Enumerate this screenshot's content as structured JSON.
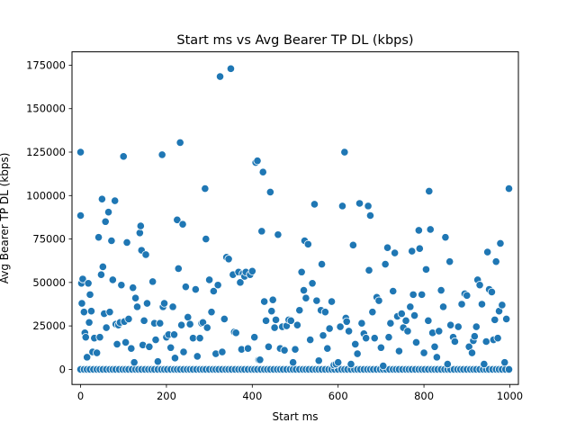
{
  "chart_data": {
    "type": "scatter",
    "title": "Start ms vs Avg Bearer TP DL (kbps)",
    "xlabel": "Start ms",
    "ylabel": "Avg Bearer TP DL (kbps)",
    "xlim": [
      -20,
      1020
    ],
    "ylim": [
      -8700,
      182700
    ],
    "x_ticks": [
      0,
      200,
      400,
      600,
      800,
      1000
    ],
    "x_tick_labels": [
      "0",
      "200",
      "400",
      "600",
      "800",
      "1000"
    ],
    "y_ticks": [
      0,
      25000,
      50000,
      75000,
      100000,
      125000,
      150000,
      175000
    ],
    "y_tick_labels": [
      "0",
      "25000",
      "50000",
      "75000",
      "100000",
      "125000",
      "150000",
      "175000"
    ],
    "grid": false,
    "legend": "none",
    "colors": {
      "marker": "#1f77b4",
      "marker_edge": "#ffffff"
    },
    "points": [
      [
        0,
        125000
      ],
      [
        0,
        88500
      ],
      [
        2,
        49500
      ],
      [
        3,
        38000
      ],
      [
        5,
        52000
      ],
      [
        8,
        33000
      ],
      [
        10,
        21000
      ],
      [
        12,
        18500
      ],
      [
        15,
        7000
      ],
      [
        18,
        49500
      ],
      [
        20,
        27000
      ],
      [
        22,
        43000
      ],
      [
        25,
        33500
      ],
      [
        28,
        10000
      ],
      [
        32,
        18000
      ],
      [
        38,
        9500
      ],
      [
        42,
        76000
      ],
      [
        45,
        18500
      ],
      [
        48,
        54500
      ],
      [
        50,
        98000
      ],
      [
        52,
        59000
      ],
      [
        55,
        32000
      ],
      [
        58,
        85000
      ],
      [
        60,
        24000
      ],
      [
        65,
        90500
      ],
      [
        68,
        33000
      ],
      [
        72,
        74000
      ],
      [
        75,
        51500
      ],
      [
        80,
        97000
      ],
      [
        82,
        26000
      ],
      [
        85,
        14500
      ],
      [
        88,
        25500
      ],
      [
        92,
        27000
      ],
      [
        95,
        48500
      ],
      [
        100,
        122500
      ],
      [
        102,
        27500
      ],
      [
        105,
        15500
      ],
      [
        108,
        73000
      ],
      [
        112,
        29000
      ],
      [
        118,
        12000
      ],
      [
        122,
        47000
      ],
      [
        125,
        4000
      ],
      [
        128,
        41000
      ],
      [
        132,
        36000
      ],
      [
        138,
        78500
      ],
      [
        140,
        82500
      ],
      [
        142,
        68500
      ],
      [
        145,
        14000
      ],
      [
        148,
        28000
      ],
      [
        152,
        66000
      ],
      [
        155,
        38000
      ],
      [
        160,
        13000
      ],
      [
        168,
        50500
      ],
      [
        172,
        26500
      ],
      [
        175,
        17000
      ],
      [
        180,
        4500
      ],
      [
        185,
        26500
      ],
      [
        190,
        123500
      ],
      [
        192,
        36000
      ],
      [
        195,
        38000
      ],
      [
        200,
        18500
      ],
      [
        205,
        20000
      ],
      [
        210,
        12500
      ],
      [
        215,
        36000
      ],
      [
        218,
        20000
      ],
      [
        220,
        6500
      ],
      [
        225,
        86000
      ],
      [
        228,
        58000
      ],
      [
        232,
        130500
      ],
      [
        235,
        25500
      ],
      [
        238,
        83500
      ],
      [
        240,
        10000
      ],
      [
        245,
        47500
      ],
      [
        250,
        30000
      ],
      [
        255,
        26000
      ],
      [
        262,
        18000
      ],
      [
        268,
        46000
      ],
      [
        272,
        7500
      ],
      [
        278,
        18000
      ],
      [
        282,
        26500
      ],
      [
        285,
        27000
      ],
      [
        290,
        104000
      ],
      [
        292,
        75000
      ],
      [
        295,
        24000
      ],
      [
        300,
        51500
      ],
      [
        305,
        33000
      ],
      [
        310,
        45000
      ],
      [
        315,
        9000
      ],
      [
        320,
        48500
      ],
      [
        325,
        168500
      ],
      [
        330,
        10000
      ],
      [
        335,
        29000
      ],
      [
        340,
        64500
      ],
      [
        345,
        63500
      ],
      [
        350,
        173000
      ],
      [
        355,
        54500
      ],
      [
        358,
        21500
      ],
      [
        362,
        21000
      ],
      [
        368,
        56000
      ],
      [
        372,
        50000
      ],
      [
        375,
        11500
      ],
      [
        378,
        55000
      ],
      [
        382,
        53500
      ],
      [
        385,
        56000
      ],
      [
        390,
        12000
      ],
      [
        395,
        54500
      ],
      [
        400,
        56500
      ],
      [
        405,
        18500
      ],
      [
        408,
        119000
      ],
      [
        412,
        120000
      ],
      [
        415,
        5500
      ],
      [
        418,
        5500
      ],
      [
        422,
        79500
      ],
      [
        425,
        113500
      ],
      [
        428,
        39000
      ],
      [
        432,
        28000
      ],
      [
        438,
        13000
      ],
      [
        442,
        102000
      ],
      [
        445,
        33500
      ],
      [
        448,
        40000
      ],
      [
        452,
        24000
      ],
      [
        455,
        28500
      ],
      [
        460,
        77500
      ],
      [
        465,
        12000
      ],
      [
        470,
        24500
      ],
      [
        475,
        11000
      ],
      [
        480,
        25000
      ],
      [
        485,
        28500
      ],
      [
        490,
        28000
      ],
      [
        495,
        4000
      ],
      [
        500,
        11500
      ],
      [
        505,
        25500
      ],
      [
        510,
        34000
      ],
      [
        515,
        56000
      ],
      [
        520,
        45500
      ],
      [
        522,
        74000
      ],
      [
        525,
        41000
      ],
      [
        530,
        72000
      ],
      [
        535,
        17000
      ],
      [
        540,
        49500
      ],
      [
        545,
        95000
      ],
      [
        550,
        39500
      ],
      [
        555,
        5000
      ],
      [
        560,
        34000
      ],
      [
        562,
        60500
      ],
      [
        565,
        19500
      ],
      [
        570,
        33000
      ],
      [
        575,
        12000
      ],
      [
        580,
        23500
      ],
      [
        585,
        39000
      ],
      [
        590,
        2500
      ],
      [
        595,
        3000
      ],
      [
        600,
        4000
      ],
      [
        605,
        24500
      ],
      [
        610,
        94000
      ],
      [
        615,
        125000
      ],
      [
        618,
        29500
      ],
      [
        620,
        27500
      ],
      [
        625,
        22000
      ],
      [
        630,
        3000
      ],
      [
        635,
        71500
      ],
      [
        640,
        14500
      ],
      [
        645,
        9000
      ],
      [
        650,
        95500
      ],
      [
        655,
        26500
      ],
      [
        660,
        20500
      ],
      [
        665,
        18000
      ],
      [
        670,
        94000
      ],
      [
        672,
        57000
      ],
      [
        675,
        88500
      ],
      [
        680,
        33000
      ],
      [
        685,
        18000
      ],
      [
        690,
        41500
      ],
      [
        695,
        39500
      ],
      [
        700,
        12500
      ],
      [
        705,
        2000
      ],
      [
        710,
        60500
      ],
      [
        715,
        70000
      ],
      [
        718,
        18500
      ],
      [
        722,
        26500
      ],
      [
        728,
        45000
      ],
      [
        732,
        67000
      ],
      [
        738,
        30500
      ],
      [
        742,
        10500
      ],
      [
        748,
        32000
      ],
      [
        752,
        24000
      ],
      [
        758,
        28000
      ],
      [
        762,
        22000
      ],
      [
        768,
        36000
      ],
      [
        772,
        68000
      ],
      [
        775,
        43000
      ],
      [
        778,
        31000
      ],
      [
        782,
        15500
      ],
      [
        788,
        80000
      ],
      [
        790,
        69500
      ],
      [
        795,
        43000
      ],
      [
        800,
        9500
      ],
      [
        805,
        57500
      ],
      [
        810,
        28000
      ],
      [
        812,
        102500
      ],
      [
        815,
        80500
      ],
      [
        820,
        21000
      ],
      [
        825,
        13000
      ],
      [
        830,
        7000
      ],
      [
        835,
        22000
      ],
      [
        840,
        45500
      ],
      [
        845,
        36000
      ],
      [
        850,
        76000
      ],
      [
        855,
        3000
      ],
      [
        860,
        62000
      ],
      [
        862,
        25500
      ],
      [
        868,
        18500
      ],
      [
        872,
        16000
      ],
      [
        880,
        24500
      ],
      [
        888,
        37500
      ],
      [
        895,
        43500
      ],
      [
        900,
        42500
      ],
      [
        905,
        13000
      ],
      [
        912,
        9500
      ],
      [
        915,
        16500
      ],
      [
        918,
        19000
      ],
      [
        922,
        24500
      ],
      [
        925,
        51500
      ],
      [
        930,
        48500
      ],
      [
        935,
        37500
      ],
      [
        940,
        3000
      ],
      [
        945,
        16000
      ],
      [
        948,
        67500
      ],
      [
        952,
        46000
      ],
      [
        958,
        44500
      ],
      [
        962,
        17000
      ],
      [
        965,
        28500
      ],
      [
        968,
        62000
      ],
      [
        972,
        18000
      ],
      [
        975,
        33500
      ],
      [
        978,
        72500
      ],
      [
        982,
        37000
      ],
      [
        988,
        4000
      ],
      [
        992,
        29000
      ],
      [
        998,
        104000
      ]
    ],
    "zero_points_x": [
      0,
      8,
      15,
      22,
      30,
      38,
      45,
      52,
      60,
      68,
      75,
      82,
      90,
      98,
      105,
      112,
      120,
      128,
      135,
      142,
      150,
      158,
      165,
      172,
      180,
      188,
      195,
      202,
      210,
      218,
      225,
      232,
      240,
      248,
      255,
      262,
      270,
      278,
      285,
      292,
      300,
      308,
      315,
      322,
      330,
      338,
      345,
      352,
      360,
      368,
      375,
      382,
      390,
      398,
      405,
      412,
      420,
      428,
      435,
      442,
      450,
      458,
      465,
      472,
      480,
      488,
      495,
      502,
      510,
      518,
      525,
      532,
      540,
      548,
      555,
      562,
      570,
      578,
      585,
      592,
      600,
      608,
      615,
      622,
      630,
      638,
      645,
      652,
      660,
      668,
      675,
      682,
      690,
      698,
      705,
      712,
      720,
      728,
      735,
      742,
      750,
      758,
      765,
      772,
      780,
      788,
      795,
      802,
      810,
      818,
      825,
      832,
      840,
      848,
      855,
      862,
      870,
      878,
      885,
      892,
      900,
      908,
      915,
      922,
      930,
      938,
      945,
      952,
      960,
      968,
      975,
      982,
      990,
      998
    ]
  }
}
